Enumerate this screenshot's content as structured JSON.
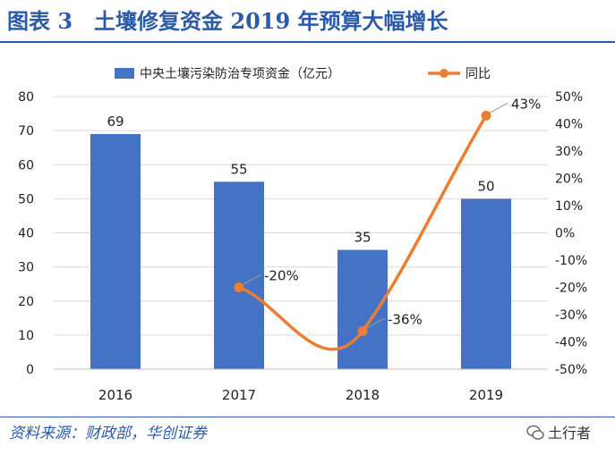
{
  "figure_title": "图表 3　土壤修复资金 2019 年预算大幅增长",
  "source": "资料来源：财政部，华创证券",
  "watermark": "土行者",
  "colors": {
    "bar": "#4472c4",
    "line": "#ed7d31",
    "title": "#2b5ba8",
    "grid": "#d9d9d9"
  },
  "chart_data": {
    "type": "bar",
    "categories": [
      "2016",
      "2017",
      "2018",
      "2019"
    ],
    "series": [
      {
        "name": "中央土壤污染防治专项资金（亿元）",
        "type": "bar",
        "axis": "left",
        "values": [
          69,
          55,
          35,
          50
        ],
        "labels": [
          "69",
          "55",
          "35",
          "50"
        ]
      },
      {
        "name": "同比",
        "type": "line",
        "axis": "right",
        "values": [
          null,
          -20,
          -36,
          43
        ],
        "labels": [
          "",
          "-20%",
          "-36%",
          "43%"
        ]
      }
    ],
    "y_left": {
      "min": 0,
      "max": 80,
      "step": 10,
      "ticks": [
        "0",
        "10",
        "20",
        "30",
        "40",
        "50",
        "60",
        "70",
        "80"
      ]
    },
    "y_right": {
      "min": -50,
      "max": 50,
      "step": 10,
      "ticks": [
        "-50%",
        "-40%",
        "-30%",
        "-20%",
        "-10%",
        "0%",
        "10%",
        "20%",
        "30%",
        "40%",
        "50%"
      ]
    },
    "grid": true,
    "legend_position": "top"
  }
}
